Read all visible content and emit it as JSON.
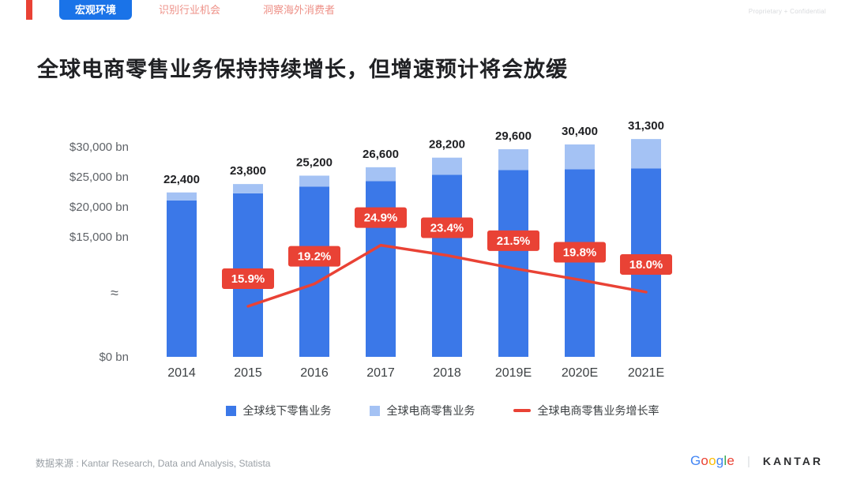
{
  "header": {
    "tabs": [
      {
        "label": "宏观环境",
        "active": true
      },
      {
        "label": "识别行业机会",
        "active": false
      },
      {
        "label": "洞察海外消费者",
        "active": false
      }
    ],
    "watermark": "Proprietary + Confidential"
  },
  "title": "全球电商零售业务保持持续增长，但增速预计将会放缓",
  "chart_data": {
    "type": "bar",
    "stacked": true,
    "categories": [
      "2014",
      "2015",
      "2016",
      "2017",
      "2018",
      "2019E",
      "2020E",
      "2021E"
    ],
    "totals": [
      22400,
      23800,
      25200,
      26600,
      28200,
      29600,
      30400,
      31300
    ],
    "total_labels": [
      "22,400",
      "23,800",
      "25,200",
      "26,600",
      "28,200",
      "29,600",
      "30,400",
      "31,300"
    ],
    "series": [
      {
        "name": "全球线下零售业务",
        "color": "#3b78e8",
        "values": [
          21064,
          22252,
          23355,
          24296,
          25357,
          26146,
          26262,
          26417
        ]
      },
      {
        "name": "全球电商零售业务",
        "color": "#a4c2f4",
        "values": [
          1336,
          1548,
          1845,
          2304,
          2843,
          3454,
          4138,
          4883
        ]
      }
    ],
    "growth_series": {
      "name": "全球电商零售业务增长率",
      "color": "#e94235",
      "x": [
        "2015",
        "2016",
        "2017",
        "2018",
        "2019E",
        "2020E",
        "2021E"
      ],
      "values": [
        15.9,
        19.2,
        24.9,
        23.4,
        21.5,
        19.8,
        18.0
      ],
      "labels": [
        "15.9%",
        "19.2%",
        "24.9%",
        "23.4%",
        "21.5%",
        "19.8%",
        "18.0%"
      ]
    },
    "y_axis": {
      "ticks": [
        "$30,000 bn",
        "$25,000 bn",
        "$20,000 bn",
        "$15,000 bn",
        "≈",
        "$0 bn"
      ],
      "break": true,
      "unit": "bn"
    },
    "title": "全球电商零售业务保持持续增长，但增速预计将会放缓",
    "xlabel": "",
    "ylabel": "",
    "legend_position": "bottom",
    "grid": false
  },
  "legend": [
    {
      "label": "全球线下零售业务",
      "color": "#3b78e8",
      "type": "square"
    },
    {
      "label": "全球电商零售业务",
      "color": "#a4c2f4",
      "type": "square"
    },
    {
      "label": "全球电商零售业务增长率",
      "color": "#e94235",
      "type": "line"
    }
  ],
  "footer": {
    "source": "数据来源 : Kantar Research, Data and Analysis, Statista",
    "google_logo": {
      "letters": [
        "G",
        "o",
        "o",
        "g",
        "l",
        "e"
      ],
      "colors": [
        "#4285F4",
        "#EA4335",
        "#FBBC05",
        "#4285F4",
        "#34A853",
        "#EA4335"
      ]
    },
    "divider": "|",
    "kantar_logo": "KANTAR"
  },
  "colors": {
    "accent_blue": "#1a73e8",
    "bar_blue": "#3b78e8",
    "bar_light_blue": "#a4c2f4",
    "line_red": "#e94235",
    "tab_inactive_red": "#ee9188",
    "title_text": "#202124",
    "axis_text": "#5f6368"
  }
}
